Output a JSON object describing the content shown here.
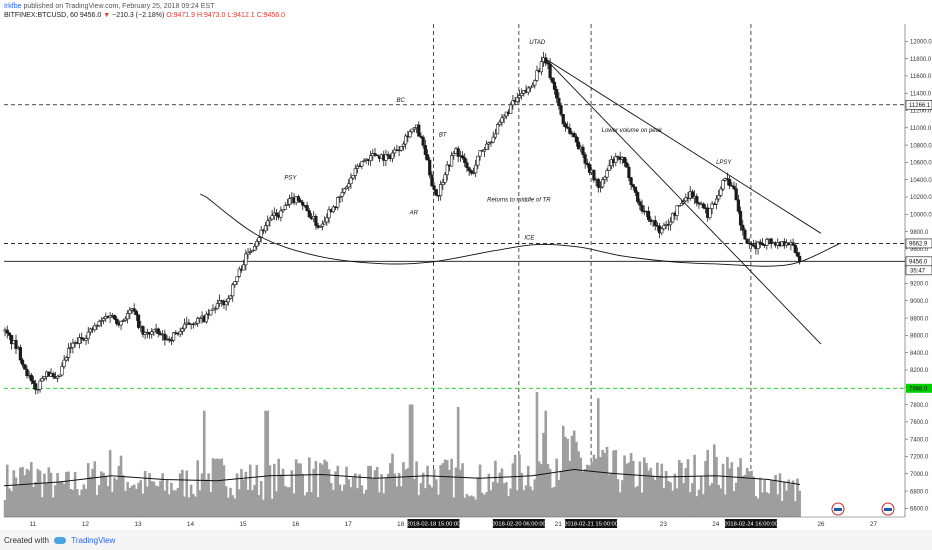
{
  "header": {
    "author": "Irkfbe",
    "published_text": "published on TradingView.com, February 25, 2018 09:24 EST",
    "symbol": "BITFINEX:BTCUSD, 60",
    "last": "9456.0",
    "change_arrow": "▼",
    "change": "−210.3 (−2.18%)",
    "o": "O:9471.9",
    "h": "H:9473.0",
    "l": "L:9412.1",
    "c": "C:9456.0"
  },
  "footer": {
    "created_with": "Created with",
    "brand": "TradingView"
  },
  "colors": {
    "candle": "#1a1a1a",
    "volume": "#9e9e9e",
    "volume_ma": "#111111",
    "green_level": "#00d000",
    "lines": "#111111"
  },
  "chart_data": {
    "type": "candlestick",
    "y_axis": {
      "ticks": [
        12000,
        11800,
        11600,
        11400,
        11200,
        11000,
        10800,
        10600,
        10400,
        10200,
        10000,
        9800,
        9600,
        9400,
        9200,
        9000,
        8800,
        8600,
        8400,
        8200,
        8000,
        7800,
        7600,
        7400,
        7200,
        7000,
        6800,
        6600
      ],
      "tick_labels": [
        "12000.0",
        "11800.0",
        "11600.0",
        "11400.0",
        "11200.0",
        "11000.0",
        "10800.0",
        "10600.0",
        "10400.0",
        "10200.0",
        "10000.0",
        "9800.0",
        "9600.0",
        "9400.0",
        "9200.0",
        "9000.0",
        "8800.0",
        "8600.0",
        "8400.0",
        "8200.0",
        "8000.0",
        "7800.0",
        "7600.0",
        "7400.0",
        "7200.0",
        "7000.0",
        "6800.0",
        "6600.0"
      ],
      "ylim": [
        6500,
        12200
      ]
    },
    "x_axis": {
      "tick_labels": [
        "11",
        "12",
        "13",
        "14",
        "15",
        "16",
        "17",
        "18",
        "21",
        "23",
        "24",
        "26",
        "27"
      ],
      "tick_day": [
        11,
        12,
        13,
        14,
        15,
        16,
        17,
        18,
        21,
        23,
        24,
        26,
        27
      ],
      "xlim": [
        10.45,
        27.6
      ],
      "date_markers": [
        {
          "label": "2018-02-18 15:00:00",
          "day": 18.625
        },
        {
          "label": "2018-02-20 06:00:00",
          "day": 20.25
        },
        {
          "label": "2018-02-21 15:00:00",
          "day": 21.625
        },
        {
          "label": "2018-02-24 16:00:00",
          "day": 24.667
        }
      ]
    },
    "price_path": [
      {
        "day": 10.45,
        "price": 8650
      },
      {
        "day": 10.7,
        "price": 8450
      },
      {
        "day": 10.9,
        "price": 8150
      },
      {
        "day": 11.05,
        "price": 7950
      },
      {
        "day": 11.25,
        "price": 8200
      },
      {
        "day": 11.45,
        "price": 8050
      },
      {
        "day": 11.7,
        "price": 8450
      },
      {
        "day": 12.0,
        "price": 8600
      },
      {
        "day": 12.2,
        "price": 8700
      },
      {
        "day": 12.45,
        "price": 8850
      },
      {
        "day": 12.65,
        "price": 8750
      },
      {
        "day": 12.9,
        "price": 8900
      },
      {
        "day": 13.1,
        "price": 8600
      },
      {
        "day": 13.3,
        "price": 8650
      },
      {
        "day": 13.55,
        "price": 8550
      },
      {
        "day": 13.8,
        "price": 8650
      },
      {
        "day": 14.0,
        "price": 8750
      },
      {
        "day": 14.3,
        "price": 8800
      },
      {
        "day": 14.5,
        "price": 8950
      },
      {
        "day": 14.7,
        "price": 9000
      },
      {
        "day": 14.9,
        "price": 9300
      },
      {
        "day": 15.05,
        "price": 9500
      },
      {
        "day": 15.25,
        "price": 9700
      },
      {
        "day": 15.5,
        "price": 9950
      },
      {
        "day": 15.7,
        "price": 10000
      },
      {
        "day": 15.9,
        "price": 10150
      },
      {
        "day": 16.05,
        "price": 10200
      },
      {
        "day": 16.2,
        "price": 10050
      },
      {
        "day": 16.45,
        "price": 9850
      },
      {
        "day": 16.65,
        "price": 10050
      },
      {
        "day": 16.8,
        "price": 10150
      },
      {
        "day": 17.0,
        "price": 10350
      },
      {
        "day": 17.25,
        "price": 10600
      },
      {
        "day": 17.5,
        "price": 10700
      },
      {
        "day": 17.75,
        "price": 10650
      },
      {
        "day": 18.0,
        "price": 10800
      },
      {
        "day": 18.15,
        "price": 10950
      },
      {
        "day": 18.3,
        "price": 11000
      },
      {
        "day": 18.45,
        "price": 10750
      },
      {
        "day": 18.6,
        "price": 10350
      },
      {
        "day": 18.7,
        "price": 10200
      },
      {
        "day": 18.85,
        "price": 10500
      },
      {
        "day": 19.05,
        "price": 10750
      },
      {
        "day": 19.2,
        "price": 10600
      },
      {
        "day": 19.35,
        "price": 10450
      },
      {
        "day": 19.5,
        "price": 10700
      },
      {
        "day": 19.7,
        "price": 10850
      },
      {
        "day": 19.9,
        "price": 11050
      },
      {
        "day": 20.1,
        "price": 11250
      },
      {
        "day": 20.25,
        "price": 11350
      },
      {
        "day": 20.45,
        "price": 11450
      },
      {
        "day": 20.6,
        "price": 11650
      },
      {
        "day": 20.75,
        "price": 11800
      },
      {
        "day": 20.85,
        "price": 11600
      },
      {
        "day": 20.95,
        "price": 11400
      },
      {
        "day": 21.1,
        "price": 11050
      },
      {
        "day": 21.3,
        "price": 10900
      },
      {
        "day": 21.5,
        "price": 10650
      },
      {
        "day": 21.65,
        "price": 10450
      },
      {
        "day": 21.8,
        "price": 10300
      },
      {
        "day": 22.0,
        "price": 10600
      },
      {
        "day": 22.2,
        "price": 10650
      },
      {
        "day": 22.35,
        "price": 10450
      },
      {
        "day": 22.55,
        "price": 10100
      },
      {
        "day": 22.75,
        "price": 9950
      },
      {
        "day": 22.95,
        "price": 9800
      },
      {
        "day": 23.1,
        "price": 9900
      },
      {
        "day": 23.3,
        "price": 10100
      },
      {
        "day": 23.5,
        "price": 10250
      },
      {
        "day": 23.65,
        "price": 10150
      },
      {
        "day": 23.85,
        "price": 10000
      },
      {
        "day": 24.05,
        "price": 10250
      },
      {
        "day": 24.2,
        "price": 10450
      },
      {
        "day": 24.35,
        "price": 10250
      },
      {
        "day": 24.5,
        "price": 9800
      },
      {
        "day": 24.65,
        "price": 9600
      },
      {
        "day": 24.8,
        "price": 9650
      },
      {
        "day": 25.0,
        "price": 9700
      },
      {
        "day": 25.2,
        "price": 9650
      },
      {
        "day": 25.35,
        "price": 9700
      },
      {
        "day": 25.5,
        "price": 9600
      },
      {
        "day": 25.6,
        "price": 9460
      }
    ],
    "volume_path": [
      {
        "day": 10.45,
        "v": 0.3
      },
      {
        "day": 11.0,
        "v": 0.35
      },
      {
        "day": 11.5,
        "v": 0.25
      },
      {
        "day": 12.0,
        "v": 0.3
      },
      {
        "day": 12.5,
        "v": 0.4
      },
      {
        "day": 13.0,
        "v": 0.28
      },
      {
        "day": 13.5,
        "v": 0.25
      },
      {
        "day": 14.0,
        "v": 0.3
      },
      {
        "day": 14.5,
        "v": 0.35
      },
      {
        "day": 15.0,
        "v": 0.32
      },
      {
        "day": 15.5,
        "v": 0.3
      },
      {
        "day": 16.0,
        "v": 0.38
      },
      {
        "day": 16.5,
        "v": 0.32
      },
      {
        "day": 17.0,
        "v": 0.3
      },
      {
        "day": 17.5,
        "v": 0.28
      },
      {
        "day": 18.0,
        "v": 0.4
      },
      {
        "day": 18.5,
        "v": 0.35
      },
      {
        "day": 19.0,
        "v": 0.33
      },
      {
        "day": 19.5,
        "v": 0.3
      },
      {
        "day": 20.0,
        "v": 0.32
      },
      {
        "day": 20.5,
        "v": 0.4
      },
      {
        "day": 21.0,
        "v": 0.55
      },
      {
        "day": 21.5,
        "v": 0.45
      },
      {
        "day": 22.0,
        "v": 0.38
      },
      {
        "day": 22.5,
        "v": 0.36
      },
      {
        "day": 23.0,
        "v": 0.32
      },
      {
        "day": 23.5,
        "v": 0.35
      },
      {
        "day": 24.0,
        "v": 0.42
      },
      {
        "day": 24.5,
        "v": 0.33
      },
      {
        "day": 25.0,
        "v": 0.28
      },
      {
        "day": 25.6,
        "v": 0.22
      }
    ],
    "volume_spikes": [
      {
        "day": 14.25,
        "v": 0.85
      },
      {
        "day": 15.45,
        "v": 0.85
      },
      {
        "day": 18.2,
        "v": 0.9
      },
      {
        "day": 19.1,
        "v": 0.88
      },
      {
        "day": 20.6,
        "v": 1.0
      },
      {
        "day": 20.75,
        "v": 0.85
      },
      {
        "day": 21.75,
        "v": 0.95
      }
    ],
    "volume_ma": [
      {
        "day": 10.45,
        "v": 0.25
      },
      {
        "day": 11.5,
        "v": 0.28
      },
      {
        "day": 12.5,
        "v": 0.33
      },
      {
        "day": 13.5,
        "v": 0.3
      },
      {
        "day": 14.5,
        "v": 0.29
      },
      {
        "day": 15.5,
        "v": 0.33
      },
      {
        "day": 16.5,
        "v": 0.34
      },
      {
        "day": 17.5,
        "v": 0.31
      },
      {
        "day": 18.5,
        "v": 0.33
      },
      {
        "day": 19.5,
        "v": 0.31
      },
      {
        "day": 20.5,
        "v": 0.33
      },
      {
        "day": 21.3,
        "v": 0.38
      },
      {
        "day": 22.0,
        "v": 0.35
      },
      {
        "day": 23.0,
        "v": 0.32
      },
      {
        "day": 24.0,
        "v": 0.33
      },
      {
        "day": 25.0,
        "v": 0.3
      },
      {
        "day": 25.6,
        "v": 0.26
      }
    ],
    "horizontal_levels": [
      {
        "price": 11266.1,
        "label": "11266.1",
        "style": "dashed",
        "color": "#111111"
      },
      {
        "price": 9662.9,
        "label": "9662.9",
        "style": "dashed",
        "color": "#111111"
      },
      {
        "price": 9456.0,
        "label": "9456.0",
        "style": "solid",
        "color": "#111111"
      },
      {
        "price": 7988.0,
        "label": "7988.0",
        "style": "dashed",
        "color": "#00d000"
      }
    ],
    "countdown_label": "35:47",
    "trendlines": [
      {
        "from": {
          "day": 20.75,
          "price": 11800
        },
        "to": {
          "day": 26.0,
          "price": 9780
        }
      },
      {
        "from": {
          "day": 20.75,
          "price": 11800
        },
        "to": {
          "day": 26.0,
          "price": 8500
        }
      }
    ],
    "curves": [
      {
        "name": "left",
        "points": [
          {
            "day": 14.3,
            "price": 10200
          },
          {
            "day": 15.3,
            "price": 9750
          },
          {
            "day": 16.4,
            "price": 9520
          },
          {
            "day": 17.6,
            "price": 9430
          },
          {
            "day": 18.6,
            "price": 9450
          },
          {
            "day": 19.8,
            "price": 9580
          },
          {
            "day": 20.6,
            "price": 9650
          },
          {
            "day": 21.4,
            "price": 9620
          },
          {
            "day": 22.2,
            "price": 9520
          },
          {
            "day": 23.2,
            "price": 9450
          },
          {
            "day": 24.2,
            "price": 9420
          },
          {
            "day": 25.0,
            "price": 9400
          },
          {
            "day": 25.6,
            "price": 9450
          },
          {
            "day": 26.35,
            "price": 9660
          }
        ]
      }
    ],
    "annotations": [
      {
        "text": "UTAD",
        "day": 20.6,
        "price": 11970
      },
      {
        "text": "BC",
        "day": 18.0,
        "price": 11300
      },
      {
        "text": "BT",
        "day": 18.8,
        "price": 10900
      },
      {
        "text": "PSY",
        "day": 15.9,
        "price": 10400
      },
      {
        "text": "AR",
        "day": 18.25,
        "price": 10000
      },
      {
        "text": "Lower volume on peak",
        "day": 22.4,
        "price": 10950
      },
      {
        "text": "LPSY",
        "day": 24.15,
        "price": 10580
      },
      {
        "text": "Returns to middle of TR",
        "day": 20.25,
        "price": 10150
      },
      {
        "text": "ICE",
        "day": 20.45,
        "price": 9710
      }
    ]
  }
}
